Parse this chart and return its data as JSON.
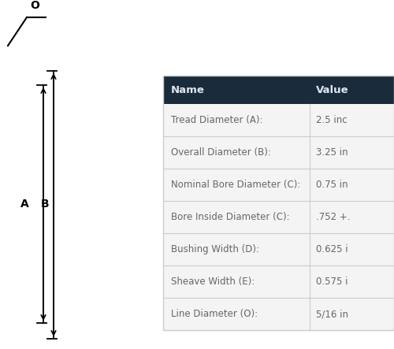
{
  "table_rows": [
    [
      "Tread Diameter (A):",
      "2.5 inc"
    ],
    [
      "Overall Diameter (B):",
      "3.25 in"
    ],
    [
      "Nominal Bore Diameter (C):",
      "0.75 in"
    ],
    [
      "Bore Inside Diameter (C):",
      ".752 +."
    ],
    [
      "Bushing Width (D):",
      "0.625 i"
    ],
    [
      "Sheave Width (E):",
      "0.575 i"
    ],
    [
      "Line Diameter (O):",
      "5/16 in"
    ]
  ],
  "header": [
    "Name",
    "Value"
  ],
  "header_bg": "#1a2b3c",
  "header_fg": "#e0e8f0",
  "row_bg": "#f4f4f4",
  "row_fg": "#666666",
  "divider_color": "#cccccc",
  "bg_color": "#ffffff"
}
